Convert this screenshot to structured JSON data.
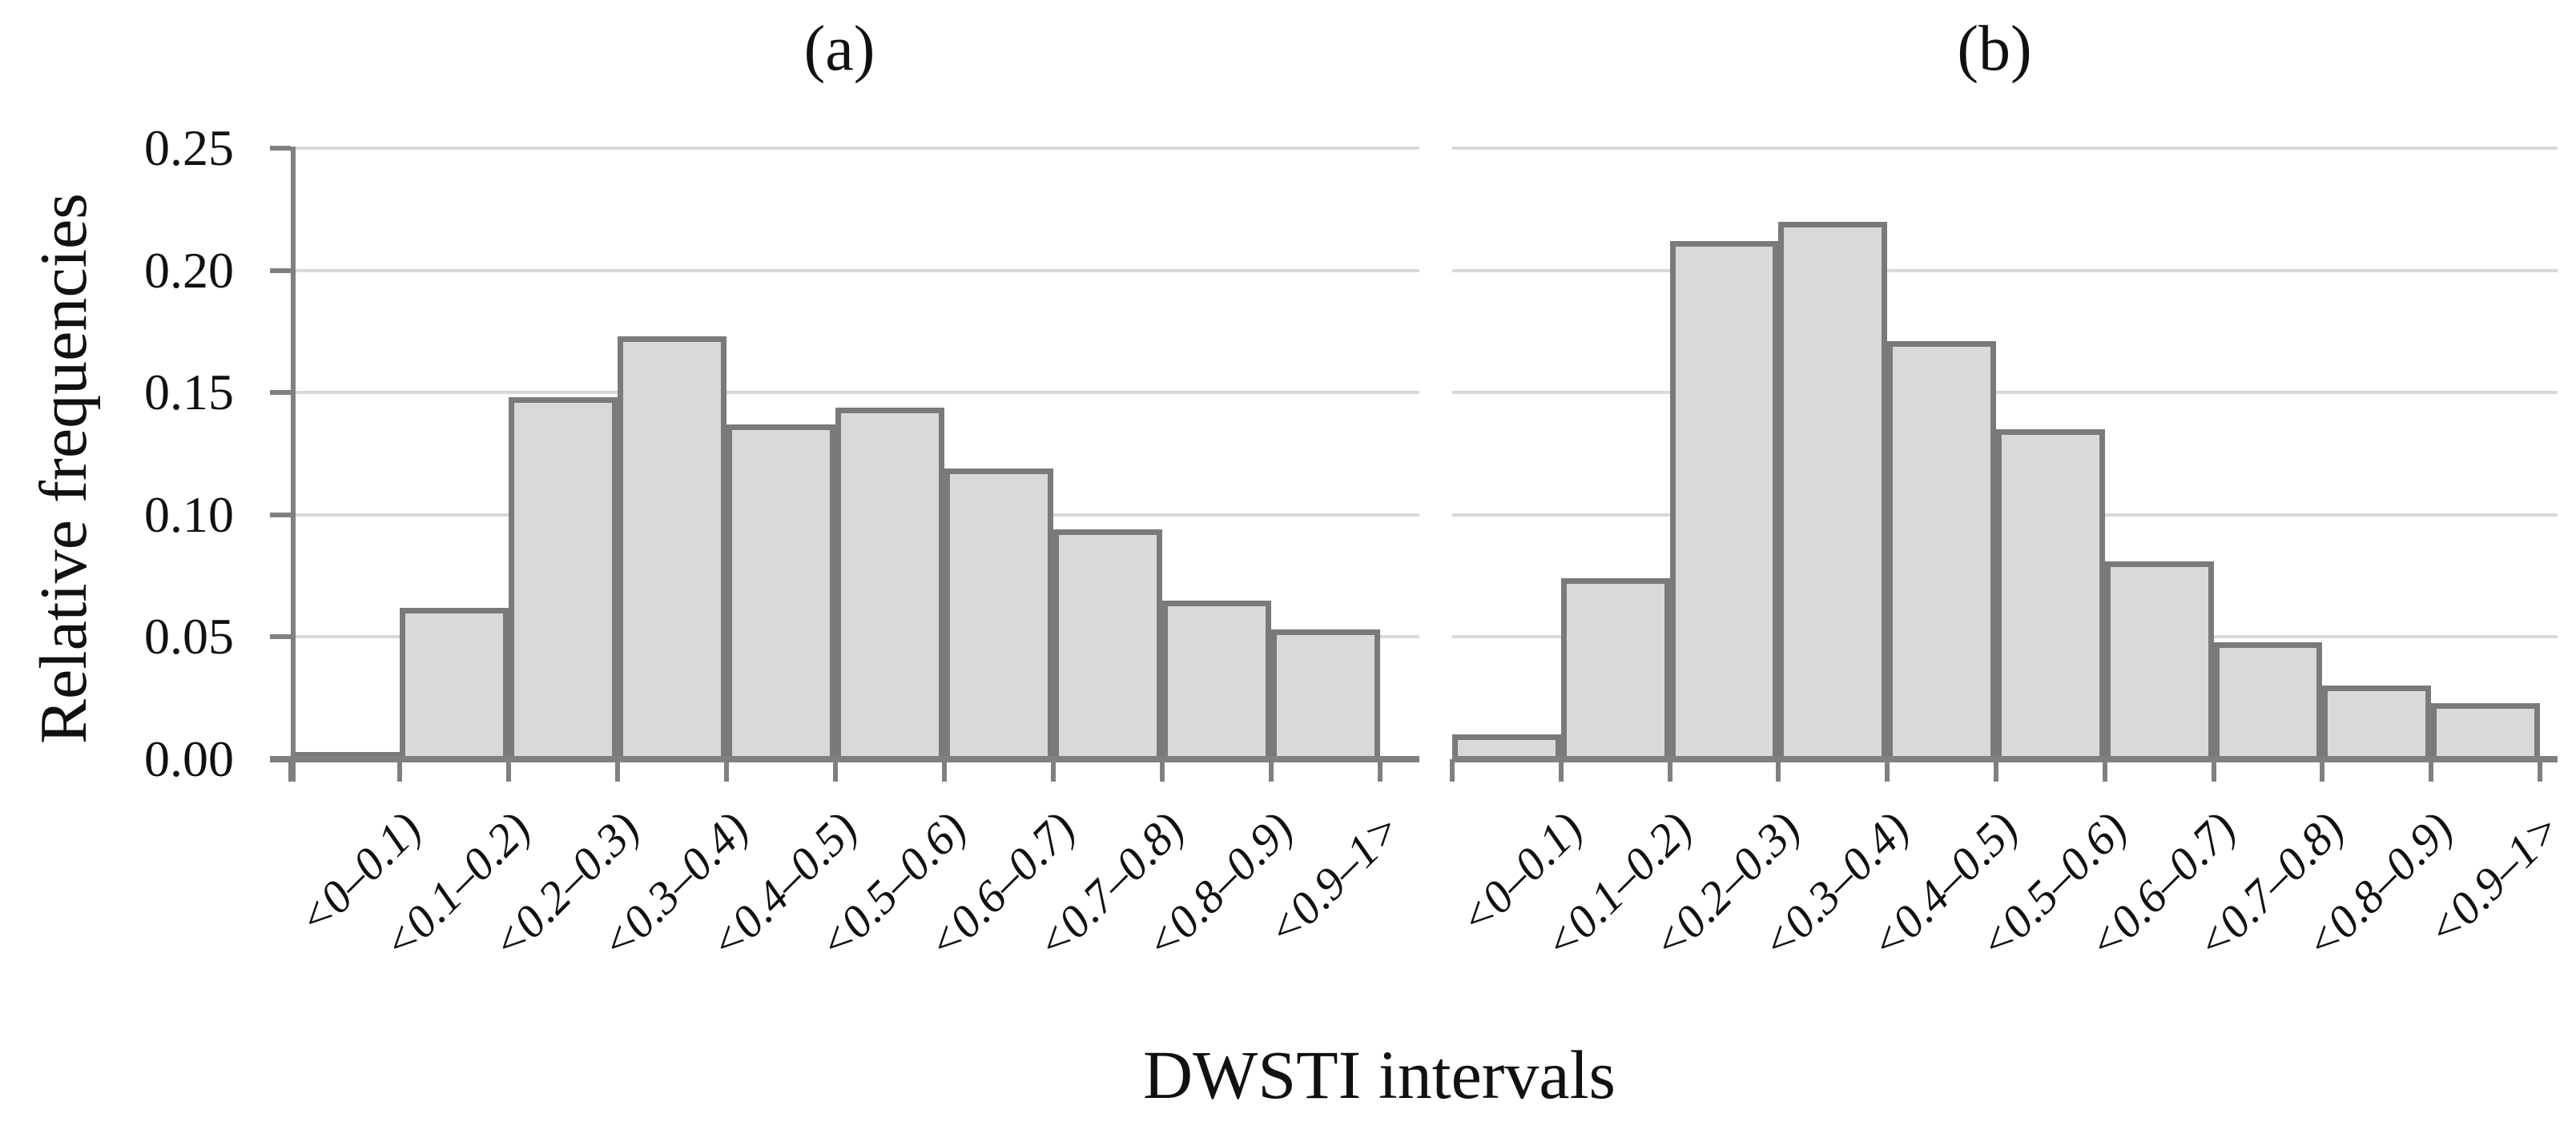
{
  "figure": {
    "y_axis_title": "Relative frequencies",
    "x_axis_title": "DWSTI intervals"
  },
  "colors": {
    "bar_fill": "#d9d9d9",
    "bar_border": "#7a7a7a",
    "axis_line": "#808080",
    "gridline": "#d8d8d8",
    "text": "#111111",
    "background": "#ffffff"
  },
  "chart_data": [
    {
      "type": "bar",
      "title": "(a)",
      "categories": [
        "<0–0.1)",
        "<0.1–0.2)",
        "<0.2–0.3)",
        "<0.3–0.4)",
        "<0.4–0.5)",
        "<0.5–0.6)",
        "<0.6–0.7)",
        "<0.7–0.8)",
        "<0.8–0.9)",
        "<0.9–1>"
      ],
      "values": [
        0.003,
        0.062,
        0.148,
        0.173,
        0.137,
        0.144,
        0.119,
        0.094,
        0.065,
        0.053
      ],
      "xlabel": "DWSTI intervals",
      "ylabel": "Relative frequencies",
      "ylim": [
        0,
        0.25
      ],
      "ytick_step": 0.05,
      "ytick_labels": [
        "0.25",
        "0.20",
        "0.15",
        "0.10",
        "0.05",
        "0.00"
      ],
      "grid": true,
      "legend": false,
      "show_y_axis": true
    },
    {
      "type": "bar",
      "title": "(b)",
      "categories": [
        "<0–0.1)",
        "<0.1–0.2)",
        "<0.2–0.3)",
        "<0.3–0.4)",
        "<0.4–0.5)",
        "<0.5–0.6)",
        "<0.6–0.7)",
        "<0.7–0.8)",
        "<0.8–0.9)",
        "<0.9–1>"
      ],
      "values": [
        0.01,
        0.074,
        0.212,
        0.22,
        0.171,
        0.135,
        0.081,
        0.048,
        0.03,
        0.023
      ],
      "xlabel": "DWSTI intervals",
      "ylabel": "Relative frequencies",
      "ylim": [
        0,
        0.25
      ],
      "ytick_step": 0.05,
      "ytick_labels": [
        "0.25",
        "0.20",
        "0.15",
        "0.10",
        "0.05",
        "0.00"
      ],
      "grid": true,
      "legend": false,
      "show_y_axis": false
    }
  ]
}
